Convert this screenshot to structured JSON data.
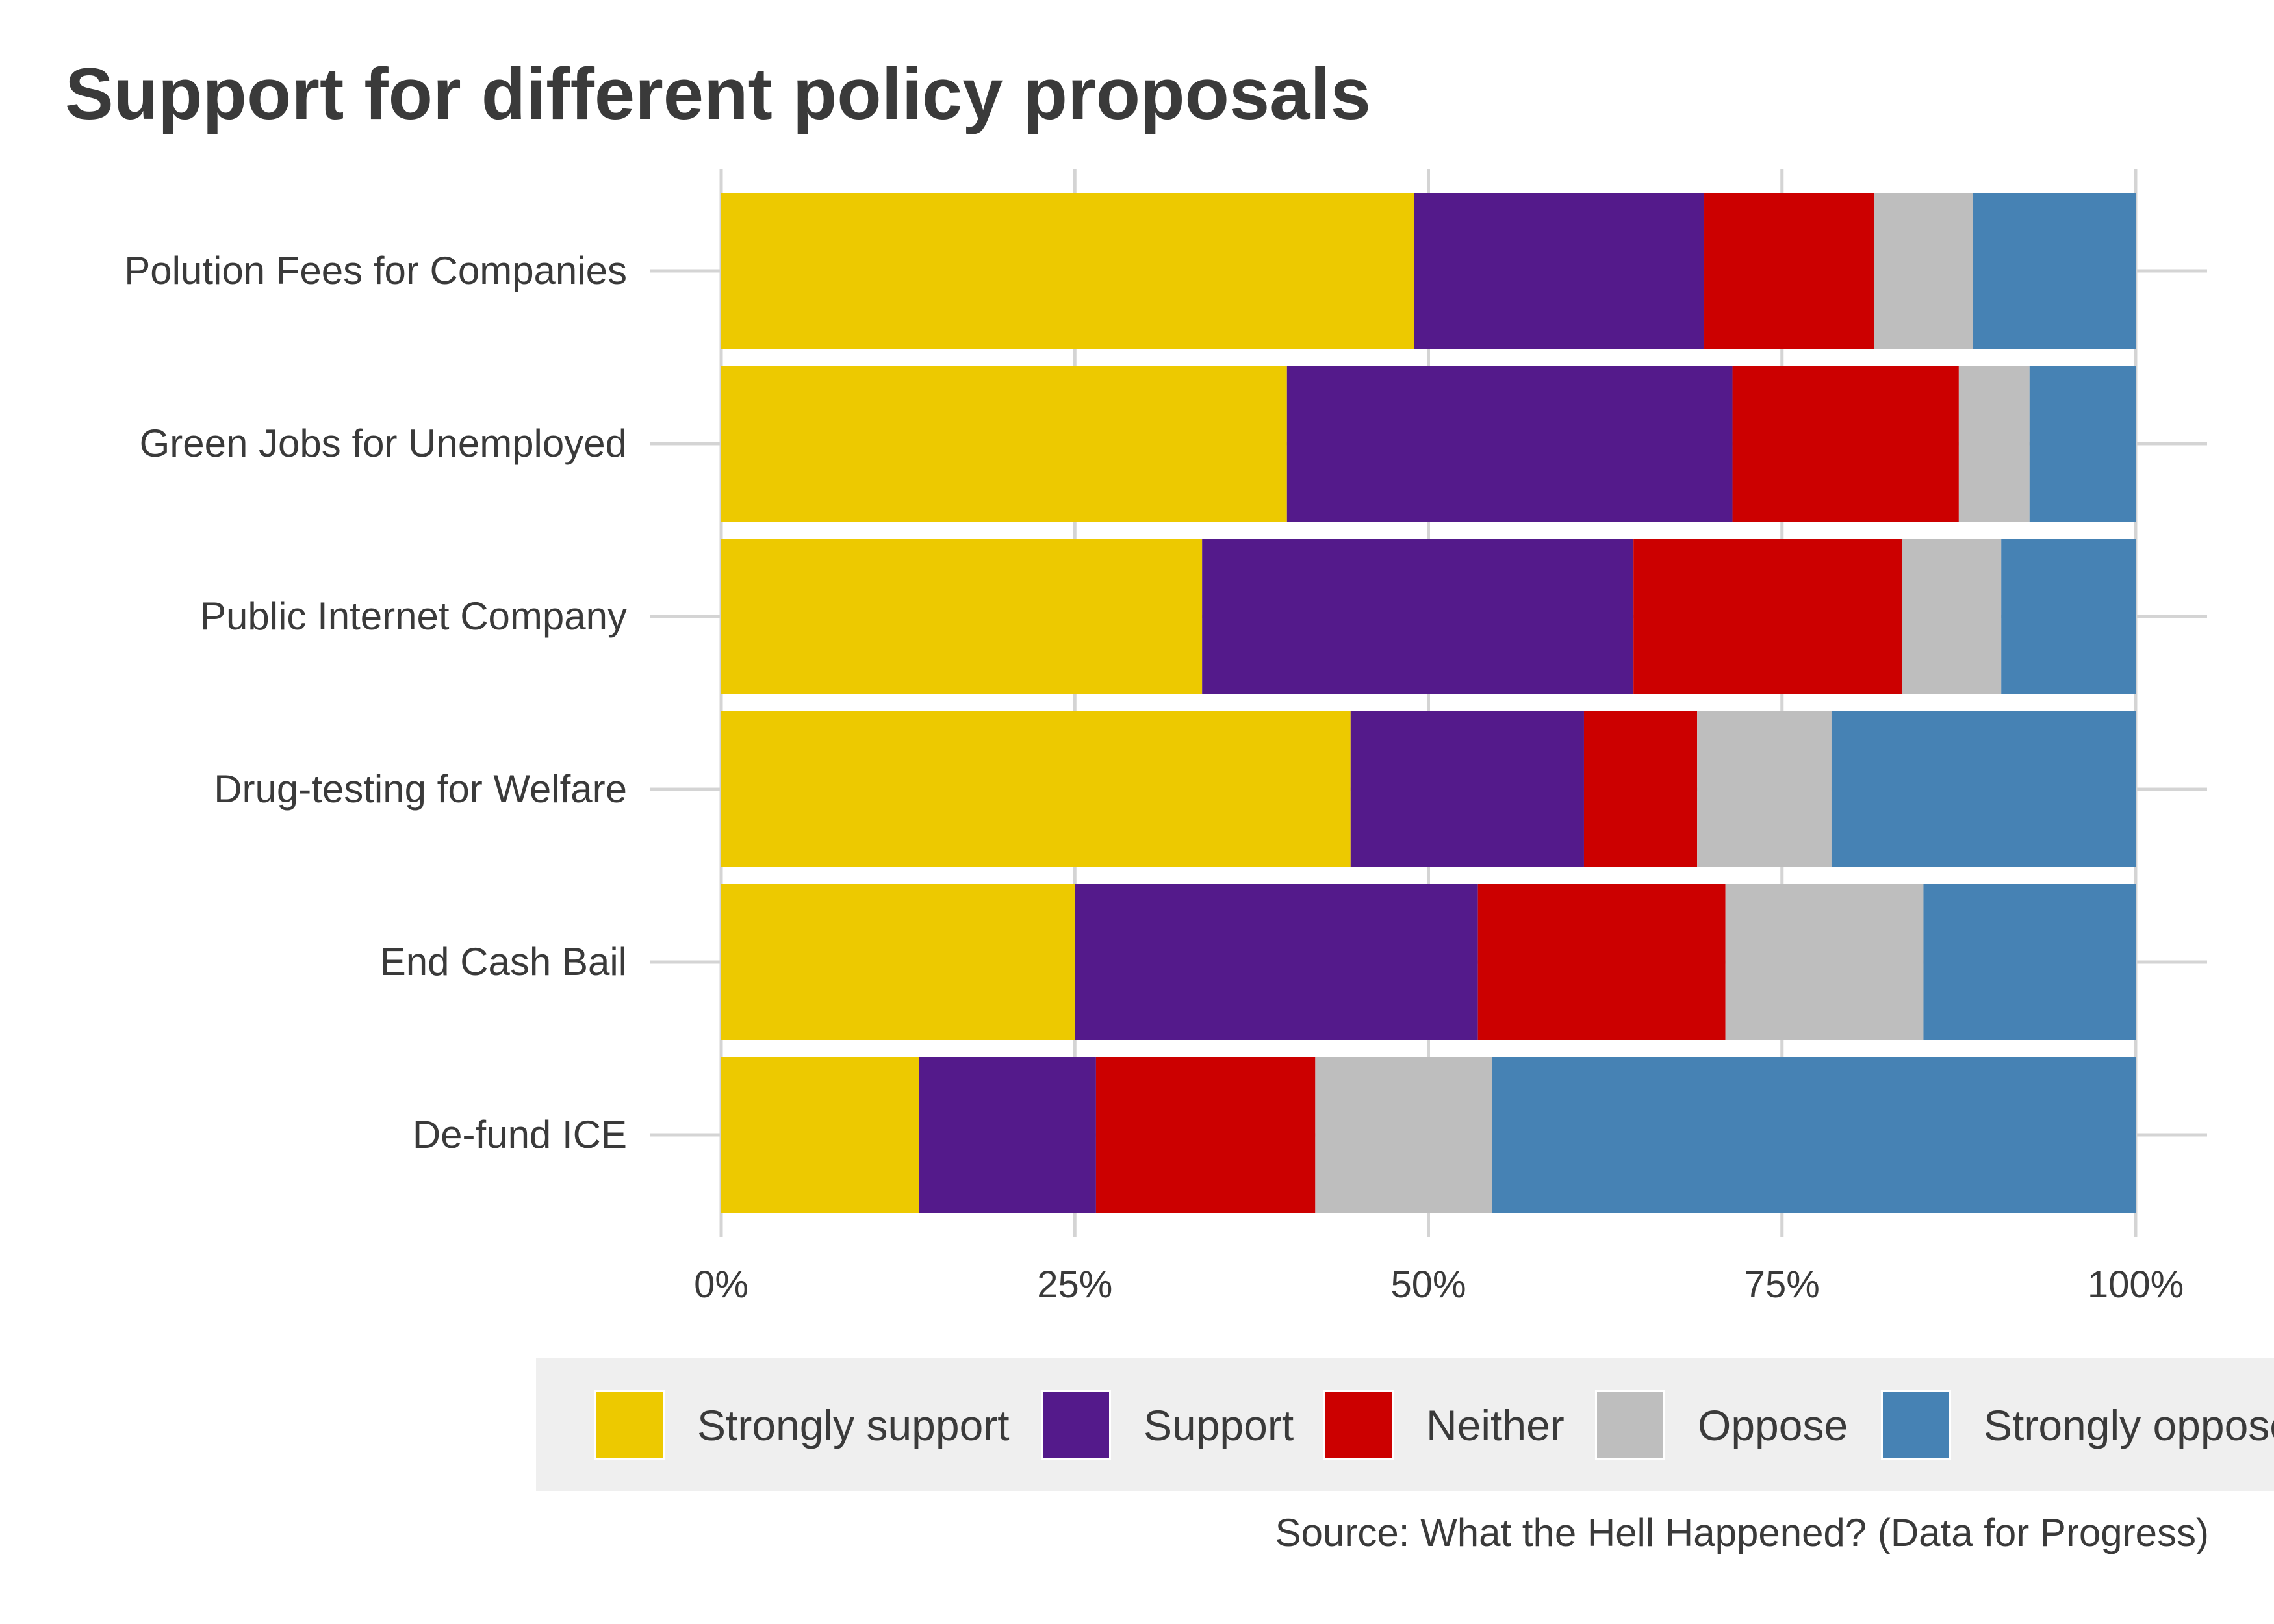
{
  "chart_data": {
    "type": "bar",
    "orientation": "horizontal",
    "stacked": true,
    "title": "Support for different policy proposals",
    "caption": "Source: What the Hell Happened? (Data for Progress)",
    "categories": [
      "Polution Fees for Companies",
      "Green Jobs for Unemployed",
      "Public Internet Company",
      "Drug-testing for Welfare",
      "End Cash Bail",
      "De-fund ICE"
    ],
    "series": [
      {
        "name": "Strongly support",
        "color": "#EDC900",
        "values": [
          49,
          40,
          34,
          44.5,
          25,
          14
        ]
      },
      {
        "name": "Support",
        "color": "#541A8B",
        "values": [
          20.5,
          31.5,
          30.5,
          16.5,
          28.5,
          12.5
        ]
      },
      {
        "name": "Neither",
        "color": "#CC0000",
        "values": [
          12,
          16,
          19,
          8,
          17.5,
          15.5
        ]
      },
      {
        "name": "Oppose",
        "color": "#BEBEBE",
        "values": [
          7,
          5,
          7,
          9.5,
          14,
          12.5
        ]
      },
      {
        "name": "Strongly oppose",
        "color": "#4682B4",
        "values": [
          11.5,
          7.5,
          9.5,
          21.5,
          15,
          45.5
        ]
      }
    ],
    "x_ticks": [
      "0%",
      "25%",
      "50%",
      "75%",
      "100%"
    ],
    "xlim": [
      0,
      100
    ],
    "grid": true,
    "legend_position": "bottom"
  }
}
